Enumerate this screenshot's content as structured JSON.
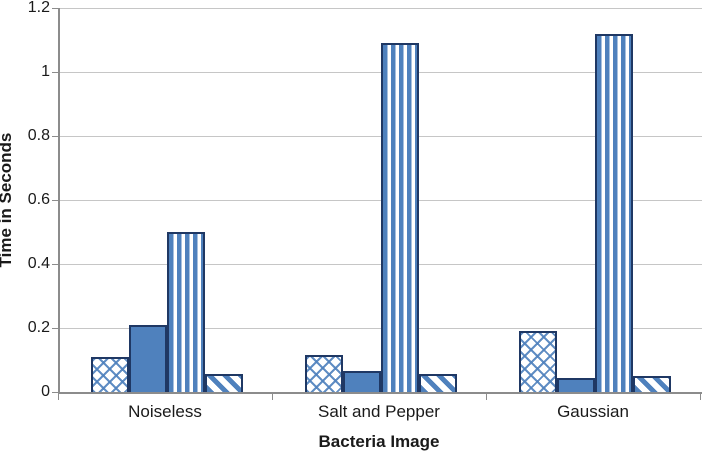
{
  "chart_data": {
    "type": "bar",
    "title": "",
    "xlabel": "Bacteria Image",
    "ylabel": "Time in Seconds",
    "categories": [
      "Noiseless",
      "Salt and Pepper",
      "Gaussian"
    ],
    "series": [
      {
        "name": "crosshatch-pattern-bar",
        "pattern": "crosshatch",
        "values": [
          0.11,
          0.115,
          0.19
        ]
      },
      {
        "name": "solid-fill-bar",
        "pattern": "solid",
        "values": [
          0.21,
          0.067,
          0.045
        ]
      },
      {
        "name": "vertical-stripes-bar",
        "pattern": "vertical-stripes",
        "values": [
          0.5,
          1.09,
          1.12
        ]
      },
      {
        "name": "diagonal-stripes-bar",
        "pattern": "diagonal-stripes",
        "values": [
          0.057,
          0.057,
          0.05
        ]
      }
    ],
    "ylim": [
      0,
      1.2
    ],
    "ytick_interval": 0.2,
    "ytick_labels": [
      "0",
      "0.2",
      "0.4",
      "0.6",
      "0.8",
      "1",
      "1.2"
    ],
    "grid": true,
    "legend_position": "none",
    "colors": {
      "bar_fill": "#4f81bd",
      "bar_border": "#1f3864",
      "gridline": "#c6c6c6",
      "axis_line": "#8c8c8c",
      "text": "#1a1a1a",
      "background": "#ffffff"
    }
  }
}
